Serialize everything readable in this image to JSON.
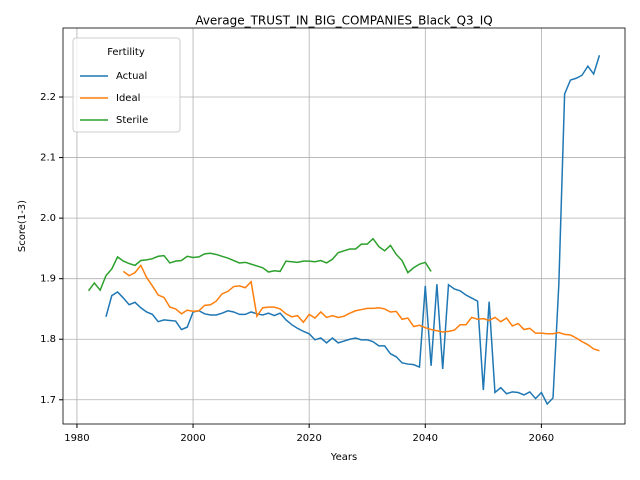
{
  "chart_data": {
    "type": "line",
    "title": "Average_TRUST_IN_BIG_COMPANIES_Black_Q3_IQ",
    "xlabel": "Years",
    "ylabel": "Score(1-3)",
    "legend_title": "Fertility",
    "legend": "upper left",
    "grid": true,
    "x": [
      1982,
      1983,
      1984,
      1985,
      1986,
      1987,
      1988,
      1989,
      1990,
      1991,
      1992,
      1993,
      1994,
      1995,
      1996,
      1997,
      1998,
      1999,
      2000,
      2001,
      2002,
      2003,
      2004,
      2005,
      2006,
      2007,
      2008,
      2009,
      2010,
      2011,
      2012,
      2013,
      2014,
      2015,
      2016,
      2017,
      2018,
      2019,
      2020,
      2021,
      2022,
      2023,
      2024,
      2025,
      2026,
      2027,
      2028,
      2029,
      2030,
      2031,
      2032,
      2033,
      2034,
      2035,
      2036,
      2037,
      2038,
      2039,
      2040,
      2041,
      2042,
      2043,
      2044,
      2045,
      2046,
      2047,
      2048,
      2049,
      2050,
      2051,
      2052,
      2053,
      2054,
      2055,
      2056,
      2057,
      2058,
      2059,
      2060,
      2061,
      2062,
      2063,
      2064,
      2065,
      2066,
      2067,
      2068,
      2069,
      2070
    ],
    "series": [
      {
        "name": "Actual",
        "color": "#1f77b4",
        "values": [
          null,
          null,
          null,
          1.837,
          1.872,
          1.878,
          1.868,
          1.857,
          1.861,
          1.852,
          1.845,
          1.841,
          1.829,
          1.832,
          1.831,
          1.83,
          1.816,
          1.82,
          1.845,
          1.847,
          1.842,
          1.84,
          1.84,
          1.843,
          1.847,
          1.845,
          1.841,
          1.841,
          1.845,
          1.842,
          1.84,
          1.843,
          1.839,
          1.843,
          1.832,
          1.824,
          1.818,
          1.813,
          1.809,
          1.799,
          1.802,
          1.794,
          1.802,
          1.794,
          1.797,
          1.8,
          1.802,
          1.799,
          1.799,
          1.796,
          1.789,
          1.789,
          1.776,
          1.771,
          1.761,
          1.759,
          1.758,
          1.754,
          1.888,
          1.756,
          1.891,
          1.751,
          1.89,
          1.883,
          1.88,
          1.873,
          1.868,
          1.863,
          1.716,
          1.862,
          1.712,
          1.72,
          1.71,
          1.713,
          1.712,
          1.708,
          1.713,
          1.702,
          1.712,
          1.693,
          1.703,
          1.89,
          2.205,
          2.228,
          2.231,
          2.236,
          2.251,
          2.238,
          2.269
        ]
      },
      {
        "name": "Ideal",
        "color": "#ff7f0e",
        "values": [
          null,
          null,
          null,
          null,
          null,
          null,
          1.912,
          1.905,
          1.91,
          1.922,
          1.902,
          1.888,
          1.873,
          1.869,
          1.853,
          1.85,
          1.842,
          1.848,
          1.846,
          1.847,
          1.856,
          1.857,
          1.863,
          1.875,
          1.879,
          1.887,
          1.888,
          1.885,
          1.895,
          1.838,
          1.852,
          1.853,
          1.853,
          1.85,
          1.842,
          1.837,
          1.839,
          1.828,
          1.841,
          1.835,
          1.845,
          1.836,
          1.839,
          1.836,
          1.838,
          1.843,
          1.847,
          1.849,
          1.851,
          1.851,
          1.852,
          1.85,
          1.845,
          1.846,
          1.833,
          1.835,
          1.821,
          1.823,
          1.819,
          1.816,
          1.814,
          1.812,
          1.813,
          1.815,
          1.824,
          1.824,
          1.836,
          1.833,
          1.834,
          1.831,
          1.836,
          1.829,
          1.835,
          1.822,
          1.826,
          1.816,
          1.818,
          1.81,
          1.81,
          1.809,
          1.809,
          1.811,
          1.808,
          1.807,
          1.802,
          1.796,
          1.791,
          1.784,
          1.781
        ]
      },
      {
        "name": "Sterile",
        "color": "#2ca02c",
        "values": [
          1.88,
          1.893,
          1.881,
          1.905,
          1.916,
          1.936,
          1.929,
          1.925,
          1.922,
          1.93,
          1.931,
          1.933,
          1.937,
          1.938,
          1.926,
          1.929,
          1.93,
          1.937,
          1.935,
          1.936,
          1.941,
          1.942,
          1.94,
          1.937,
          1.934,
          1.93,
          1.926,
          1.927,
          1.924,
          1.921,
          1.918,
          1.911,
          1.913,
          1.912,
          1.929,
          1.928,
          1.927,
          1.929,
          1.929,
          1.928,
          1.93,
          1.926,
          1.932,
          1.943,
          1.946,
          1.949,
          1.949,
          1.957,
          1.957,
          1.966,
          1.953,
          1.946,
          1.955,
          1.94,
          1.93,
          1.91,
          1.918,
          1.924,
          1.927,
          1.912,
          null,
          null,
          null,
          null,
          null,
          null,
          null,
          null,
          null,
          null,
          null,
          null,
          null,
          null,
          null,
          null,
          null,
          null,
          null,
          null,
          null,
          null,
          null,
          null,
          null,
          null,
          null,
          null,
          null
        ]
      }
    ],
    "xlim": [
      1977.6,
      2074.4
    ],
    "xticks": [
      1980,
      2000,
      2020,
      2040,
      2060
    ],
    "ylim": [
      1.66,
      2.314
    ],
    "yticks": [
      1.7,
      1.8,
      1.9,
      {
        "value": 2,
        "label": "2.0"
      },
      2.1,
      2.2
    ]
  }
}
